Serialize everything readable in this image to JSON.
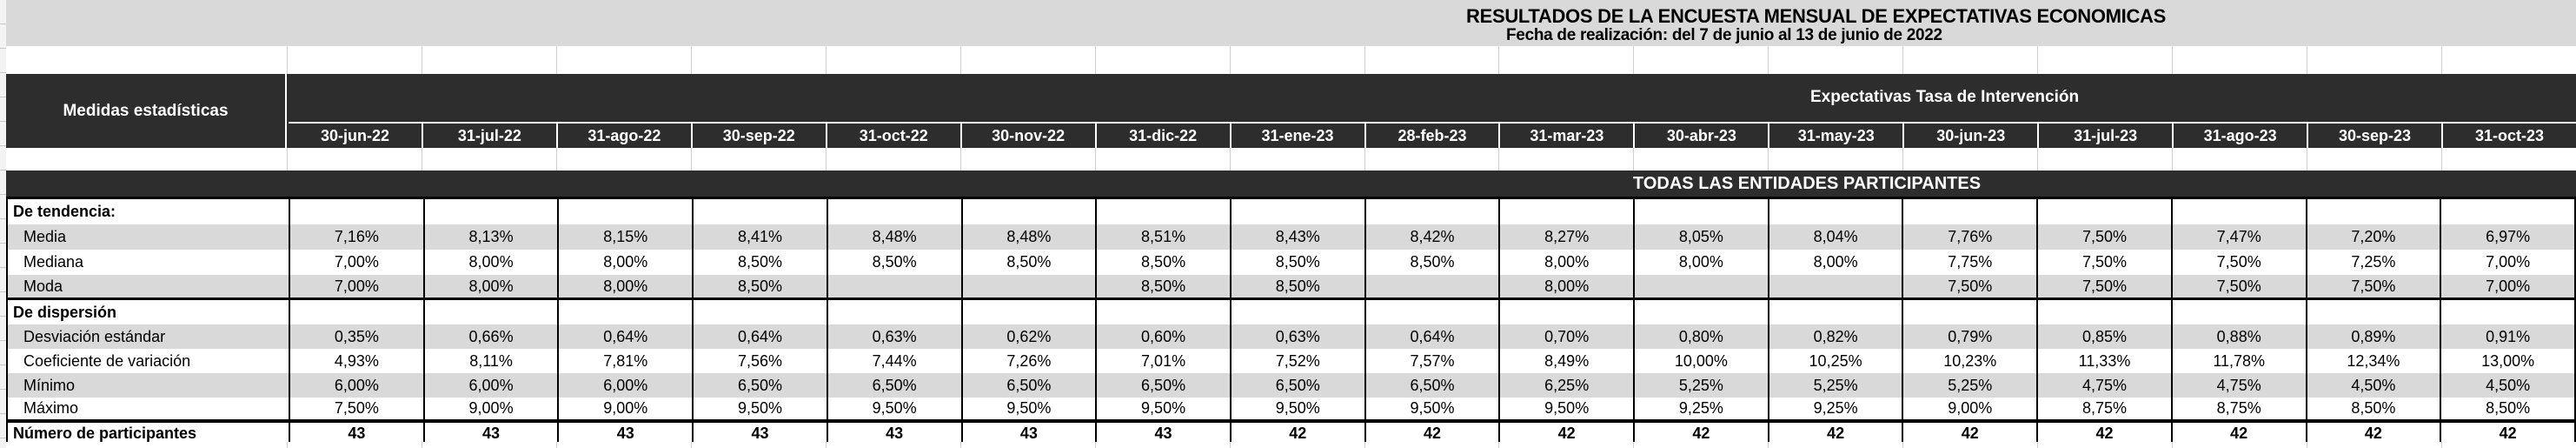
{
  "title": "RESULTADOS DE LA ENCUESTA MENSUAL DE EXPECTATIVAS ECONOMICAS",
  "subtitle": "Fecha de realización: del 7 de junio al 13 de junio de 2022",
  "colors": {
    "header_bg": "#2d2d2d",
    "band_bg": "#d9d9d9",
    "stripe_bg": "#d9d9d9",
    "grid_border": "#000000",
    "light_gridline": "#cfcfcf"
  },
  "table": {
    "corner_header": "Medidas estadísticas",
    "group_header": "Expectativas Tasa de Intervención",
    "banner": "TODAS LAS ENTIDADES PARTICIPANTES",
    "columns": [
      "30-jun-22",
      "31-jul-22",
      "31-ago-22",
      "30-sep-22",
      "31-oct-22",
      "30-nov-22",
      "31-dic-22",
      "31-ene-23",
      "28-feb-23",
      "31-mar-23",
      "30-abr-23",
      "31-may-23",
      "30-jun-23",
      "31-jul-23",
      "31-ago-23",
      "30-sep-23",
      "31-oct-23"
    ],
    "rows": [
      {
        "label": "De tendencia:",
        "type": "section",
        "shaded": false,
        "thick_bottom": false,
        "values": [
          "",
          "",
          "",
          "",
          "",
          "",
          "",
          "",
          "",
          "",
          "",
          "",
          "",
          "",
          "",
          "",
          ""
        ]
      },
      {
        "label": "Media",
        "type": "item",
        "shaded": true,
        "thick_bottom": false,
        "values": [
          "7,16%",
          "8,13%",
          "8,15%",
          "8,41%",
          "8,48%",
          "8,48%",
          "8,51%",
          "8,43%",
          "8,42%",
          "8,27%",
          "8,05%",
          "8,04%",
          "7,76%",
          "7,50%",
          "7,47%",
          "7,20%",
          "6,97%"
        ]
      },
      {
        "label": "Mediana",
        "type": "item",
        "shaded": false,
        "thick_bottom": false,
        "values": [
          "7,00%",
          "8,00%",
          "8,00%",
          "8,50%",
          "8,50%",
          "8,50%",
          "8,50%",
          "8,50%",
          "8,50%",
          "8,00%",
          "8,00%",
          "8,00%",
          "7,75%",
          "7,50%",
          "7,50%",
          "7,25%",
          "7,00%"
        ]
      },
      {
        "label": "Moda",
        "type": "item",
        "shaded": true,
        "thick_bottom": true,
        "values": [
          "7,00%",
          "8,00%",
          "8,00%",
          "8,50%",
          "",
          "",
          "8,50%",
          "8,50%",
          "",
          "8,00%",
          "",
          "",
          "7,50%",
          "7,50%",
          "7,50%",
          "7,50%",
          "7,00%"
        ]
      },
      {
        "label": "De dispersión",
        "type": "section",
        "shaded": false,
        "thick_bottom": false,
        "values": [
          "",
          "",
          "",
          "",
          "",
          "",
          "",
          "",
          "",
          "",
          "",
          "",
          "",
          "",
          "",
          "",
          ""
        ]
      },
      {
        "label": "Desviación estándar",
        "type": "item",
        "shaded": true,
        "thick_bottom": false,
        "values": [
          "0,35%",
          "0,66%",
          "0,64%",
          "0,64%",
          "0,63%",
          "0,62%",
          "0,60%",
          "0,63%",
          "0,64%",
          "0,70%",
          "0,80%",
          "0,82%",
          "0,79%",
          "0,85%",
          "0,88%",
          "0,89%",
          "0,91%"
        ]
      },
      {
        "label": "Coeficiente de variación",
        "type": "item",
        "shaded": false,
        "thick_bottom": false,
        "values": [
          "4,93%",
          "8,11%",
          "7,81%",
          "7,56%",
          "7,44%",
          "7,26%",
          "7,01%",
          "7,52%",
          "7,57%",
          "8,49%",
          "10,00%",
          "10,25%",
          "10,23%",
          "11,33%",
          "11,78%",
          "12,34%",
          "13,00%"
        ]
      },
      {
        "label": "Mínimo",
        "type": "item",
        "shaded": true,
        "thick_bottom": false,
        "values": [
          "6,00%",
          "6,00%",
          "6,00%",
          "6,50%",
          "6,50%",
          "6,50%",
          "6,50%",
          "6,50%",
          "6,50%",
          "6,25%",
          "5,25%",
          "5,25%",
          "5,25%",
          "4,75%",
          "4,75%",
          "4,50%",
          "4,50%"
        ]
      },
      {
        "label": "Máximo",
        "type": "item",
        "shaded": false,
        "thick_bottom": true,
        "values": [
          "7,50%",
          "9,00%",
          "9,00%",
          "9,50%",
          "9,50%",
          "9,50%",
          "9,50%",
          "9,50%",
          "9,50%",
          "9,50%",
          "9,25%",
          "9,25%",
          "9,00%",
          "8,75%",
          "8,75%",
          "8,50%",
          "8,50%"
        ]
      },
      {
        "label": "Número de participantes",
        "type": "total",
        "shaded": false,
        "thick_bottom": false,
        "values": [
          "43",
          "43",
          "43",
          "43",
          "43",
          "43",
          "43",
          "42",
          "42",
          "42",
          "42",
          "42",
          "42",
          "42",
          "42",
          "42",
          "42"
        ]
      }
    ]
  }
}
